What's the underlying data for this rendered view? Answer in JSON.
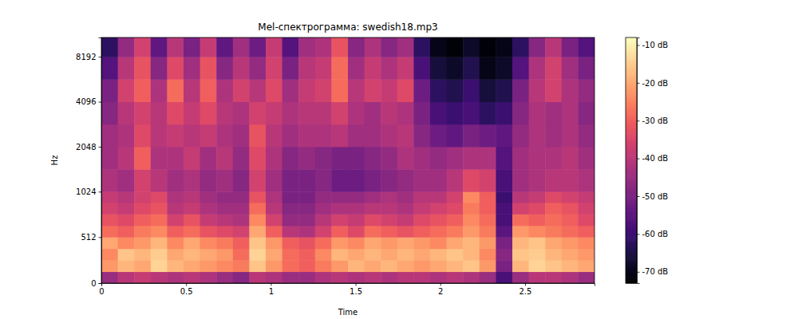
{
  "chart_data": {
    "type": "heatmap",
    "title": "Mel-спектрограмма: swedish18.mp3",
    "x_label": "Time",
    "y_label": "Hz",
    "xlim": [
      0,
      2.91
    ],
    "xticks": [
      0,
      0.5,
      1,
      1.5,
      2,
      2.5
    ],
    "ylim": [
      0,
      11025
    ],
    "yticks": [
      0,
      512,
      1024,
      2048,
      4096,
      8192
    ],
    "x_edges": [
      0,
      0.097,
      0.194,
      0.291,
      0.388,
      0.485,
      0.582,
      0.679,
      0.776,
      0.873,
      0.97,
      1.067,
      1.164,
      1.261,
      1.358,
      1.455,
      1.552,
      1.649,
      1.746,
      1.843,
      1.94,
      2.037,
      2.134,
      2.231,
      2.328,
      2.425,
      2.522,
      2.619,
      2.716,
      2.813,
      2.91
    ],
    "y_edges": [
      0,
      128,
      256,
      384,
      512,
      640,
      768,
      896,
      1024,
      1448,
      2048,
      2896,
      4096,
      5793,
      8192,
      11025
    ],
    "cells": [
      [
        -45,
        -40,
        -38,
        -40,
        -42,
        -40,
        -42,
        -45,
        -48,
        -40,
        -42,
        -45,
        -45,
        -42,
        -40,
        -42,
        -40,
        -42,
        -40,
        -40,
        -42,
        -40,
        -42,
        -45,
        -58,
        -45,
        -40,
        -40,
        -42,
        -45
      ],
      [
        -22,
        -18,
        -20,
        -14,
        -18,
        -20,
        -22,
        -24,
        -26,
        -16,
        -22,
        -28,
        -30,
        -26,
        -22,
        -18,
        -20,
        -18,
        -20,
        -22,
        -20,
        -18,
        -16,
        -22,
        -50,
        -18,
        -14,
        -16,
        -18,
        -20
      ],
      [
        -24,
        -16,
        -18,
        -15,
        -20,
        -18,
        -20,
        -22,
        -28,
        -14,
        -20,
        -28,
        -30,
        -24,
        -18,
        -20,
        -18,
        -20,
        -18,
        -20,
        -18,
        -16,
        -18,
        -24,
        -48,
        -16,
        -15,
        -18,
        -20,
        -22
      ],
      [
        -20,
        -24,
        -22,
        -18,
        -24,
        -20,
        -24,
        -26,
        -30,
        -16,
        -22,
        -30,
        -32,
        -28,
        -22,
        -24,
        -20,
        -22,
        -20,
        -22,
        -24,
        -20,
        -18,
        -22,
        -50,
        -18,
        -16,
        -20,
        -22,
        -24
      ],
      [
        -28,
        -30,
        -26,
        -24,
        -30,
        -28,
        -32,
        -34,
        -36,
        -20,
        -30,
        -40,
        -42,
        -36,
        -30,
        -34,
        -28,
        -30,
        -32,
        -30,
        -28,
        -26,
        -22,
        -26,
        -55,
        -22,
        -24,
        -26,
        -28,
        -30
      ],
      [
        -32,
        -34,
        -30,
        -28,
        -36,
        -32,
        -38,
        -40,
        -42,
        -24,
        -36,
        -46,
        -46,
        -40,
        -36,
        -38,
        -34,
        -36,
        -38,
        -34,
        -32,
        -30,
        -24,
        -28,
        -58,
        -28,
        -30,
        -28,
        -30,
        -34
      ],
      [
        -36,
        -38,
        -34,
        -32,
        -40,
        -38,
        -42,
        -44,
        -44,
        -28,
        -40,
        -48,
        -48,
        -44,
        -42,
        -42,
        -40,
        -40,
        -42,
        -38,
        -36,
        -34,
        -26,
        -30,
        -58,
        -36,
        -34,
        -30,
        -32,
        -36
      ],
      [
        -38,
        -40,
        -36,
        -34,
        -42,
        -40,
        -44,
        -46,
        -46,
        -32,
        -42,
        -50,
        -50,
        -46,
        -46,
        -46,
        -44,
        -42,
        -44,
        -40,
        -40,
        -36,
        -24,
        -30,
        -60,
        -40,
        -38,
        -34,
        -36,
        -38
      ],
      [
        -42,
        -44,
        -36,
        -40,
        -44,
        -42,
        -46,
        -44,
        -48,
        -36,
        -44,
        -50,
        -50,
        -48,
        -52,
        -52,
        -50,
        -48,
        -46,
        -44,
        -44,
        -40,
        -34,
        -36,
        -58,
        -44,
        -42,
        -40,
        -40,
        -42
      ],
      [
        -44,
        -40,
        -30,
        -42,
        -42,
        -38,
        -44,
        -40,
        -46,
        -34,
        -42,
        -48,
        -46,
        -48,
        -50,
        -50,
        -48,
        -46,
        -42,
        -44,
        -46,
        -44,
        -42,
        -42,
        -56,
        -44,
        -42,
        -42,
        -40,
        -44
      ],
      [
        -44,
        -42,
        -34,
        -40,
        -38,
        -40,
        -38,
        -42,
        -44,
        -32,
        -40,
        -44,
        -42,
        -42,
        -40,
        -44,
        -44,
        -42,
        -40,
        -48,
        -52,
        -54,
        -50,
        -52,
        -54,
        -46,
        -42,
        -44,
        -42,
        -46
      ],
      [
        -48,
        -40,
        -36,
        -40,
        -34,
        -38,
        -34,
        -40,
        -42,
        -36,
        -38,
        -42,
        -40,
        -40,
        -36,
        -42,
        -44,
        -40,
        -42,
        -50,
        -58,
        -60,
        -58,
        -62,
        -60,
        -48,
        -42,
        -44,
        -42,
        -48
      ],
      [
        -50,
        -36,
        -30,
        -42,
        -28,
        -40,
        -30,
        -42,
        -36,
        -40,
        -34,
        -44,
        -38,
        -36,
        -28,
        -40,
        -36,
        -38,
        -34,
        -52,
        -62,
        -64,
        -60,
        -66,
        -64,
        -50,
        -40,
        -36,
        -42,
        -46
      ],
      [
        -56,
        -40,
        -32,
        -48,
        -34,
        -44,
        -32,
        -48,
        -40,
        -46,
        -36,
        -50,
        -40,
        -38,
        -28,
        -44,
        -38,
        -42,
        -38,
        -58,
        -66,
        -68,
        -64,
        -70,
        -68,
        -56,
        -42,
        -36,
        -44,
        -50
      ],
      [
        -62,
        -46,
        -36,
        -54,
        -40,
        -50,
        -38,
        -54,
        -44,
        -52,
        -38,
        -56,
        -44,
        -42,
        -32,
        -48,
        -42,
        -48,
        -44,
        -62,
        -70,
        -72,
        -68,
        -72,
        -70,
        -62,
        -48,
        -40,
        -50,
        -56
      ]
    ],
    "colorbar": {
      "range": [
        -73,
        -8
      ],
      "ticks": [
        {
          "value": -10,
          "label": "-10 dB"
        },
        {
          "value": -20,
          "label": "-20 dB"
        },
        {
          "value": -30,
          "label": "-30 dB"
        },
        {
          "value": -40,
          "label": "-40 dB"
        },
        {
          "value": -50,
          "label": "-50 dB"
        },
        {
          "value": -60,
          "label": "-60 dB"
        },
        {
          "value": -70,
          "label": "-70 dB"
        }
      ]
    }
  }
}
